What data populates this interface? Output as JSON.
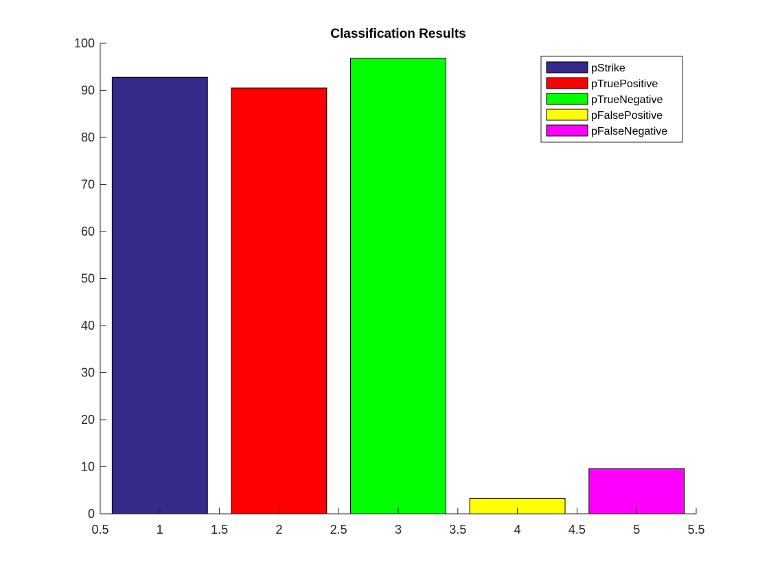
{
  "chart_data": {
    "type": "bar",
    "title": "Classification Results",
    "xlabel": "",
    "ylabel": "",
    "xlim": [
      0.5,
      5.5
    ],
    "ylim": [
      0,
      100
    ],
    "xticks": [
      0.5,
      1,
      1.5,
      2,
      2.5,
      3,
      3.5,
      4,
      4.5,
      5,
      5.5
    ],
    "yticks": [
      0,
      10,
      20,
      30,
      40,
      50,
      60,
      70,
      80,
      90,
      100
    ],
    "xtick_labels": [
      "0.5",
      "1",
      "1.5",
      "2",
      "2.5",
      "3",
      "3.5",
      "4",
      "4.5",
      "5",
      "5.5"
    ],
    "ytick_labels": [
      "0",
      "10",
      "20",
      "30",
      "40",
      "50",
      "60",
      "70",
      "80",
      "90",
      "100"
    ],
    "bar_width": 0.8,
    "grid": false,
    "legend_position": "top-right",
    "series": [
      {
        "name": "pStrike",
        "x": 1,
        "value": 92.8,
        "color": "#352a87"
      },
      {
        "name": "pTruePositive",
        "x": 2,
        "value": 90.5,
        "color": "#ff0000"
      },
      {
        "name": "pTrueNegative",
        "x": 3,
        "value": 96.8,
        "color": "#00ff00"
      },
      {
        "name": "pFalsePositive",
        "x": 4,
        "value": 3.3,
        "color": "#ffff00"
      },
      {
        "name": "pFalseNegative",
        "x": 5,
        "value": 9.6,
        "color": "#ff00ff"
      }
    ]
  }
}
